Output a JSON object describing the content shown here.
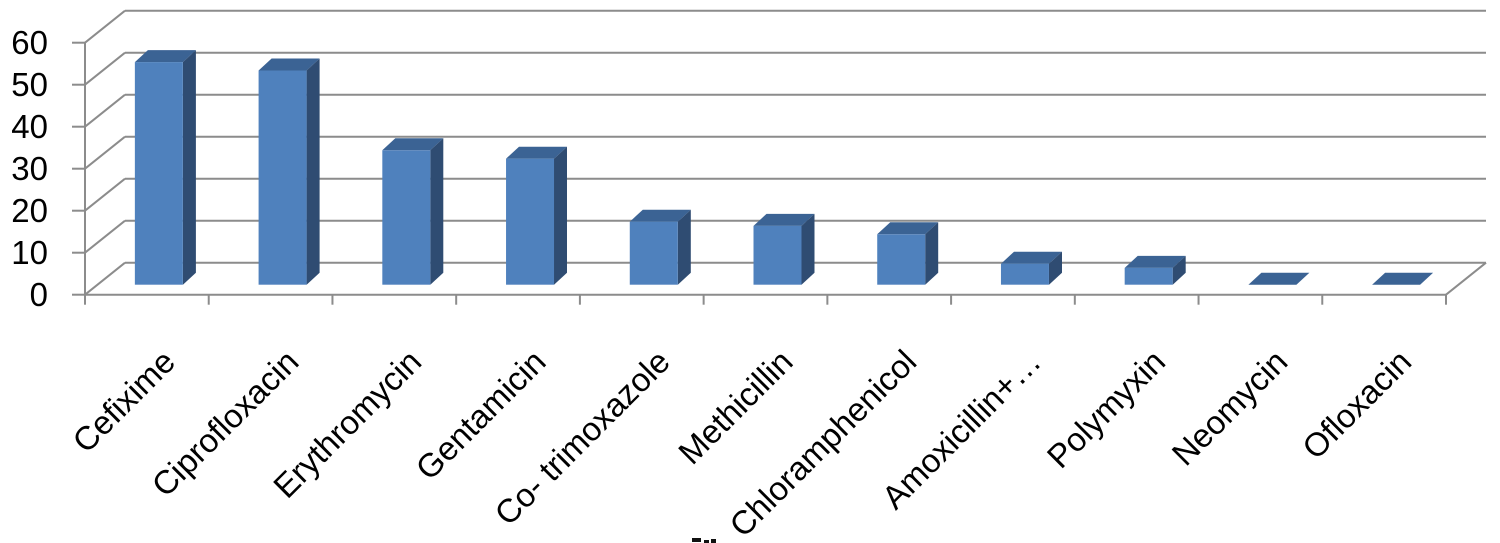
{
  "chart_data": {
    "type": "bar",
    "style": "3d-column",
    "title": "",
    "xlabel": "",
    "ylabel": "",
    "categories": [
      "Cefixime",
      "Ciprofloxacin",
      "Erythromycin",
      "Gentamicin",
      "Co- trimoxazole",
      "Methicillin",
      "Chloramphenicol",
      "Amoxicillin+…",
      "Polymyxin",
      "Neomycin",
      "Ofloxacin"
    ],
    "values": [
      53,
      51,
      32,
      30,
      15,
      14,
      12,
      5,
      4,
      0,
      0
    ],
    "y_ticks": [
      "0",
      "10",
      "20",
      "30",
      "40",
      "50",
      "60"
    ],
    "ylim": [
      0,
      60
    ],
    "grid": true,
    "legend_position": "none",
    "colors": {
      "bar_front": "#4F81BD",
      "bar_top": "#3B6394",
      "bar_side": "#2F4C72",
      "gridline": "#8C8C8C",
      "text": "#000000",
      "background": "#FFFFFF"
    }
  }
}
